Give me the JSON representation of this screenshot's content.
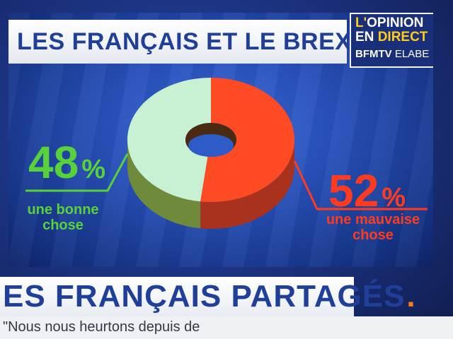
{
  "header": {
    "title": "LES FRANÇAIS ET LE BREXIT"
  },
  "brand": {
    "line1_prefix": "L'",
    "line1_word": "OPINION",
    "line2_prefix": "EN ",
    "line2_word": "DIRECT",
    "footer_bold": "BFMTV",
    "footer_plain": " ELABE"
  },
  "banner": {
    "headline": "ES FRANÇAIS PARTAGÉS",
    "dot": "."
  },
  "ticker": {
    "text": "\"Nous nous heurtons depuis de"
  },
  "colors": {
    "good": "#57d23b",
    "bad": "#ff3b1f",
    "slice_good": "#c8f0d2",
    "slice_bad": "#ff4b24"
  },
  "chart_data": {
    "type": "pie",
    "title": "LES FRANÇAIS ET LE BREXIT",
    "series": [
      {
        "name": "une bonne chose",
        "value": 48,
        "label": "48",
        "unit": "%"
      },
      {
        "name": "une mauvaise chose",
        "value": 52,
        "label": "52",
        "unit": "%"
      }
    ]
  }
}
